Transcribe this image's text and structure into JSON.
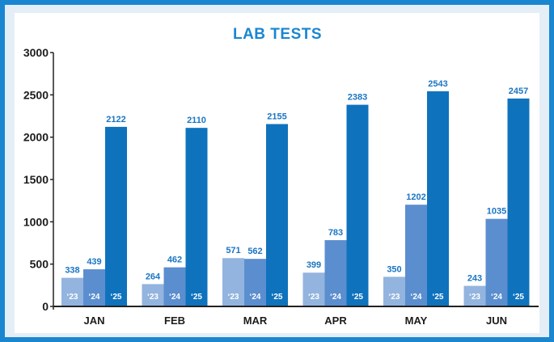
{
  "chart_data": {
    "type": "bar",
    "title": "LAB TESTS",
    "categories": [
      "JAN",
      "FEB",
      "MAR",
      "APR",
      "MAY",
      "JUN"
    ],
    "series": [
      {
        "name": "'23",
        "values": [
          338,
          264,
          571,
          399,
          350,
          243
        ]
      },
      {
        "name": "'24",
        "values": [
          439,
          462,
          562,
          783,
          1202,
          1035
        ]
      },
      {
        "name": "'25",
        "values": [
          2122,
          2110,
          2155,
          2383,
          2543,
          2457
        ]
      }
    ],
    "bar_labels": [
      [
        "‘23",
        "‘24",
        "‘25"
      ],
      [
        "‘23",
        "‘24",
        "‘25"
      ],
      [
        "‘23",
        "‘24",
        "‘25"
      ],
      [
        "‘23",
        "‘24",
        "‘25"
      ],
      [
        "‘23",
        "‘24",
        "‘25"
      ],
      [
        "‘23",
        "‘24",
        "‘25"
      ]
    ],
    "y_ticks": [
      "0",
      "500",
      "1000",
      "1500",
      "2000",
      "2500",
      "3000"
    ],
    "ylim": [
      0,
      3000
    ],
    "xlabel": "",
    "ylabel": "",
    "grid": false
  },
  "colors": {
    "frame": "#1a86d0",
    "title": "#1a86d0",
    "label": "#1a75c4",
    "series": [
      "#93b4de",
      "#5b8ecf",
      "#0f72bd"
    ],
    "axis": "#222222"
  }
}
